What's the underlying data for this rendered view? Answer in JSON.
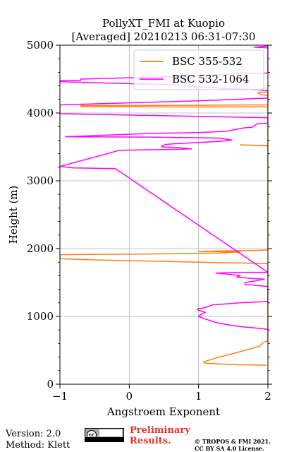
{
  "chart_data": {
    "type": "line",
    "title_line1": "PollyXT_FMI at Kuopio",
    "title_line2": "[Averaged] 20210213 06:31-07:30",
    "xlabel": "Angstroem Exponent",
    "ylabel": "Height (m)",
    "xlim": [
      -1,
      2
    ],
    "ylim": [
      0,
      5000
    ],
    "xticks": [
      -1,
      0,
      1,
      2
    ],
    "yticks": [
      0,
      1000,
      2000,
      3000,
      4000,
      5000
    ],
    "grid": true,
    "legend_position": "top-right",
    "series": [
      {
        "name": "BSC 355-532",
        "color": "#ff7f0e",
        "points": [
          [
            1.98,
            280
          ],
          [
            1.5,
            290
          ],
          [
            1.1,
            310
          ],
          [
            1.07,
            330
          ],
          [
            1.3,
            400
          ],
          [
            1.6,
            480
          ],
          [
            1.88,
            560
          ],
          [
            1.93,
            610
          ],
          [
            1.97,
            630
          ],
          [
            2.0,
            640
          ],
          [
            2.0,
            1780
          ],
          [
            1.0,
            1800
          ],
          [
            -0.4,
            1830
          ],
          [
            -1.0,
            1850
          ],
          [
            -1.0,
            1910
          ],
          [
            0.2,
            1920
          ],
          [
            1.3,
            1935
          ],
          [
            1.6,
            1950
          ],
          [
            1.0,
            1960
          ],
          [
            1.3,
            1965
          ],
          [
            1.6,
            1970
          ],
          [
            1.9,
            1975
          ],
          [
            2.0,
            1980
          ],
          [
            2.0,
            3520
          ],
          [
            1.8,
            3525
          ],
          [
            1.6,
            3530
          ],
          [
            1.9,
            3520
          ],
          [
            2.0,
            3515
          ],
          [
            2.0,
            4090
          ],
          [
            0.5,
            4090
          ],
          [
            -0.7,
            4095
          ],
          [
            -0.7,
            4110
          ],
          [
            0.3,
            4110
          ],
          [
            2.0,
            4120
          ],
          [
            2.0,
            4260
          ],
          [
            1.9,
            4270
          ],
          [
            1.85,
            4300
          ],
          [
            1.95,
            4310
          ],
          [
            2.0,
            4310
          ]
        ]
      },
      {
        "name": "BSC 532-1064",
        "color": "#ff00ff",
        "points": [
          [
            2.0,
            810
          ],
          [
            1.8,
            830
          ],
          [
            1.6,
            850
          ],
          [
            1.4,
            880
          ],
          [
            1.25,
            910
          ],
          [
            1.1,
            960
          ],
          [
            1.0,
            1000
          ],
          [
            1.05,
            1040
          ],
          [
            1.1,
            1060
          ],
          [
            1.0,
            1090
          ],
          [
            0.98,
            1110
          ],
          [
            1.1,
            1130
          ],
          [
            1.2,
            1170
          ],
          [
            1.6,
            1200
          ],
          [
            2.0,
            1220
          ],
          [
            2.0,
            1440
          ],
          [
            1.8,
            1460
          ],
          [
            1.67,
            1470
          ],
          [
            1.67,
            1500
          ],
          [
            1.8,
            1520
          ],
          [
            1.95,
            1550
          ],
          [
            1.75,
            1560
          ],
          [
            1.55,
            1580
          ],
          [
            1.6,
            1600
          ],
          [
            1.45,
            1620
          ],
          [
            1.25,
            1640
          ],
          [
            1.6,
            1650
          ],
          [
            2.0,
            1650
          ],
          [
            -0.2,
            3180
          ],
          [
            -0.5,
            3185
          ],
          [
            -0.8,
            3190
          ],
          [
            -1.0,
            3210
          ],
          [
            -0.14,
            3450
          ],
          [
            0.5,
            3460
          ],
          [
            0.9,
            3470
          ],
          [
            0.7,
            3490
          ],
          [
            0.48,
            3500
          ],
          [
            0.47,
            3520
          ],
          [
            0.55,
            3540
          ],
          [
            0.9,
            3560
          ],
          [
            1.3,
            3580
          ],
          [
            1.48,
            3600
          ],
          [
            1.3,
            3630
          ],
          [
            0.3,
            3645
          ],
          [
            -0.92,
            3650
          ],
          [
            0.35,
            3700
          ],
          [
            1.0,
            3710
          ],
          [
            1.4,
            3730
          ],
          [
            1.55,
            3760
          ],
          [
            1.65,
            3780
          ],
          [
            1.77,
            3790
          ],
          [
            1.8,
            3810
          ],
          [
            1.85,
            3840
          ],
          [
            2.0,
            3850
          ],
          [
            2.0,
            3930
          ],
          [
            1.0,
            3950
          ],
          [
            0.0,
            3970
          ],
          [
            -1.0,
            3990
          ],
          [
            -1.0,
            4120
          ],
          [
            0.0,
            4150
          ],
          [
            1.0,
            4180
          ],
          [
            2.0,
            4220
          ],
          [
            2.0,
            4330
          ],
          [
            1.7,
            4350
          ],
          [
            1.4,
            4360
          ],
          [
            1.1,
            4380
          ],
          [
            0.5,
            4420
          ],
          [
            -1.0,
            4460
          ],
          [
            -1.0,
            4480
          ],
          [
            -0.7,
            4480
          ],
          [
            -0.7,
            4500
          ],
          [
            0.0,
            4520
          ],
          [
            1.0,
            4550
          ],
          [
            1.6,
            4580
          ],
          [
            2.0,
            4590
          ],
          [
            2.0,
            4960
          ],
          [
            1.8,
            4970
          ],
          [
            1.92,
            4980
          ],
          [
            2.0,
            4990
          ]
        ]
      }
    ]
  },
  "footer": {
    "version": "Version: 2.0",
    "method": "Method: Klett",
    "preliminary_line1": "Preliminary",
    "preliminary_line2": "Results.",
    "copyright_line1": "© TROPOS & FMI 2021.",
    "copyright_line2": "CC BY SA 4.0 License.",
    "license_badge": "cc-by-sa"
  }
}
